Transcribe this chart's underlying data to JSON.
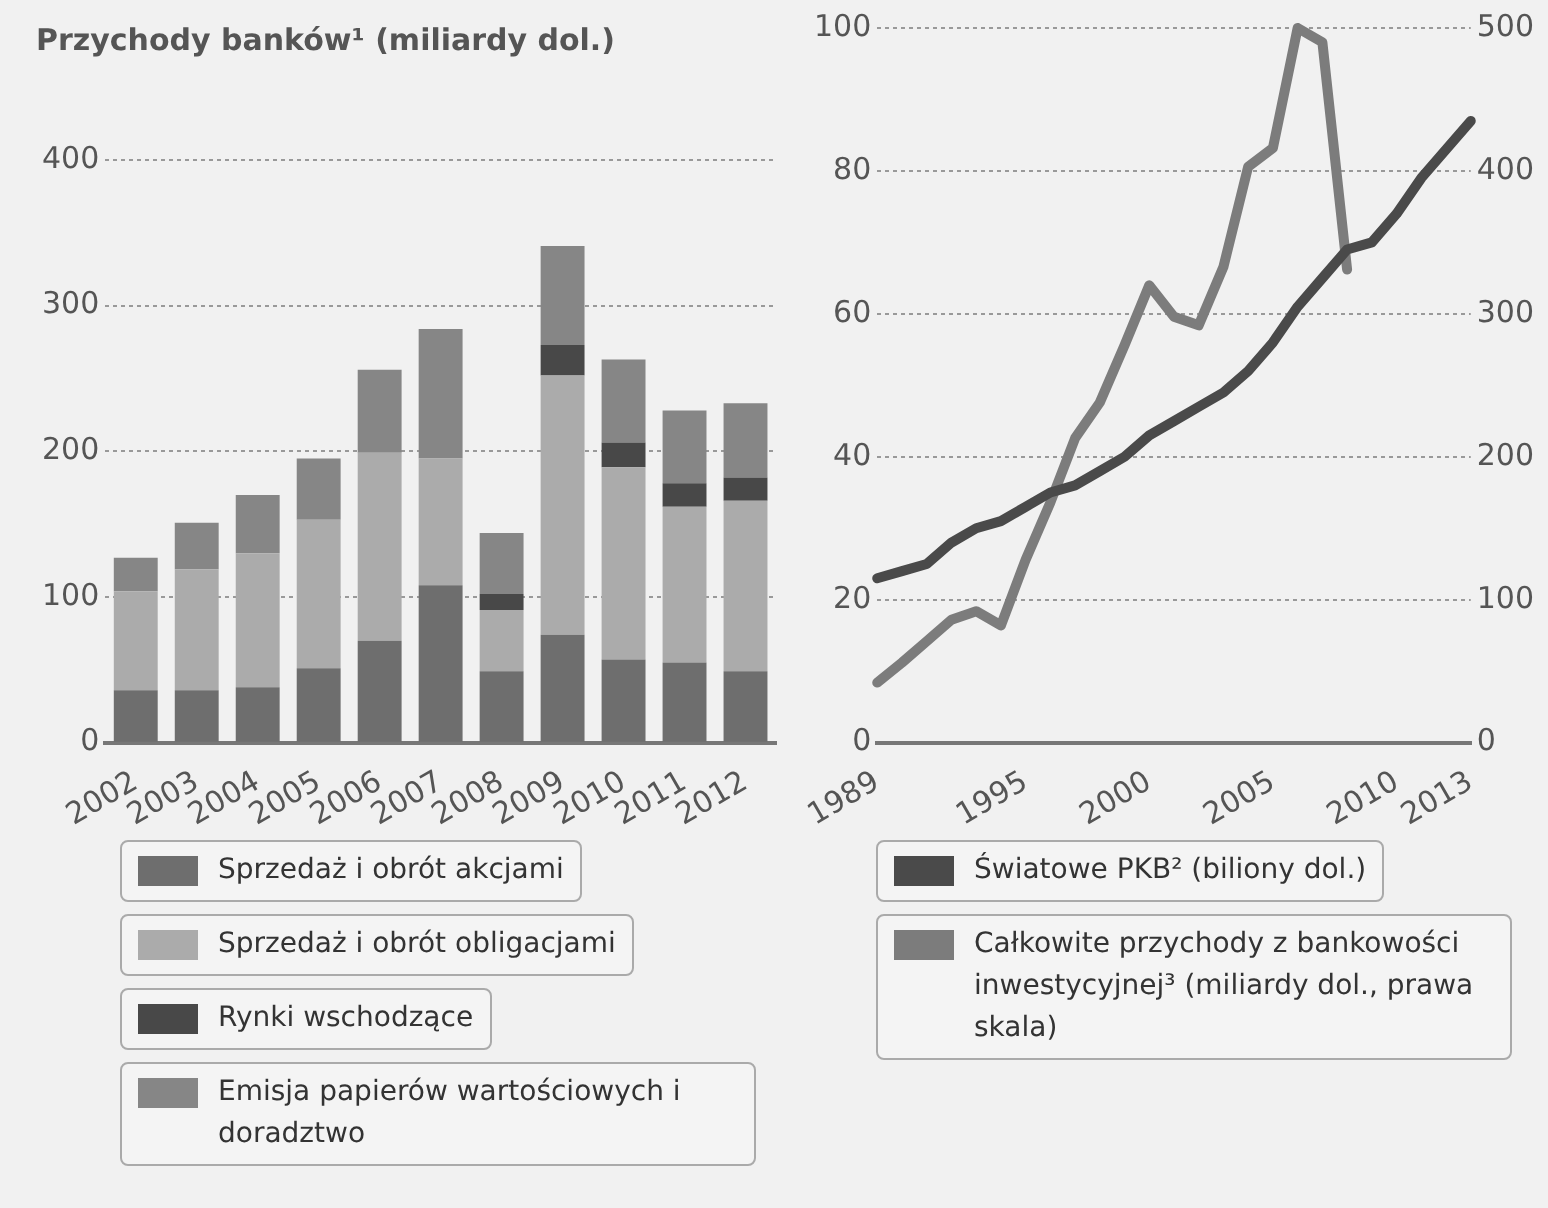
{
  "chart_data": [
    {
      "type": "bar",
      "title": "Przychody banków¹ (miliardy dol.)",
      "stacked": true,
      "grid": "y",
      "legend": "bottom",
      "categories": [
        "2002",
        "2003",
        "2004",
        "2005",
        "2006",
        "2007",
        "2008",
        "2009",
        "2010",
        "2011",
        "2012"
      ],
      "ylim": [
        0,
        400
      ],
      "yticks": [
        0,
        100,
        200,
        300,
        400
      ],
      "series": [
        {
          "name": "Sprzedaż i obrót akcjami",
          "color": "#6e6e6e",
          "values": [
            36,
            36,
            38,
            51,
            70,
            108,
            49,
            74,
            57,
            55,
            49
          ]
        },
        {
          "name": "Sprzedaż i obrót obligacjami",
          "color": "#ababab",
          "values": [
            68,
            83,
            92,
            102,
            129,
            87,
            42,
            178,
            132,
            107,
            117
          ]
        },
        {
          "name": "Rynki wschodzące",
          "color": "#484848",
          "values": [
            0,
            0,
            0,
            0,
            0,
            0,
            11,
            21,
            17,
            16,
            16
          ]
        },
        {
          "name": "Emisja papierów wartościowych i doradztwo",
          "color": "#868686",
          "values": [
            23,
            32,
            40,
            42,
            57,
            89,
            42,
            68,
            57,
            50,
            51
          ]
        }
      ]
    },
    {
      "type": "line",
      "grid": "y",
      "legend": "bottom",
      "marker": "none",
      "x": [
        1989,
        1990,
        1991,
        1992,
        1993,
        1994,
        1995,
        1996,
        1997,
        1998,
        1999,
        2000,
        2001,
        2002,
        2003,
        2004,
        2005,
        2006,
        2007,
        2008
      ],
      "xlim": [
        1989,
        2013
      ],
      "xticks": [
        1989,
        1995,
        2000,
        2005,
        2010,
        2013
      ],
      "ylim": [
        0,
        100
      ],
      "yticks": [
        0,
        20,
        40,
        60,
        80,
        100
      ],
      "y2lim": [
        0,
        500
      ],
      "y2ticks": [
        0,
        100,
        200,
        300,
        400,
        500
      ],
      "series": [
        {
          "name": "Światowe PKB² (biliony dol.)",
          "color": "#4a4a4a",
          "x": [
            1989,
            1990,
            1991,
            1992,
            1993,
            1994,
            1995,
            1996,
            1997,
            1998,
            1999,
            2000,
            2001,
            2002,
            2003,
            2004,
            2005,
            2006,
            2007,
            2008,
            2009,
            2010,
            2011,
            2012,
            2013
          ],
          "values": [
            23,
            24,
            25,
            28,
            30,
            31,
            33,
            35,
            36,
            38,
            40,
            43,
            45,
            47,
            49,
            52,
            56,
            61,
            65,
            69,
            70,
            74,
            79,
            83,
            87
          ]
        },
        {
          "name": "Całkowite przychody z bankowości inwestycyjnej³ (miliardy dol., prawa skala)",
          "color": "#7c7c7c",
          "axis": "y2",
          "values": [
            42,
            56,
            71,
            86,
            92,
            82,
            128,
            168,
            213,
            238,
            278,
            320,
            298,
            292,
            333,
            403,
            416,
            500,
            490,
            331
          ]
        }
      ]
    }
  ]
}
